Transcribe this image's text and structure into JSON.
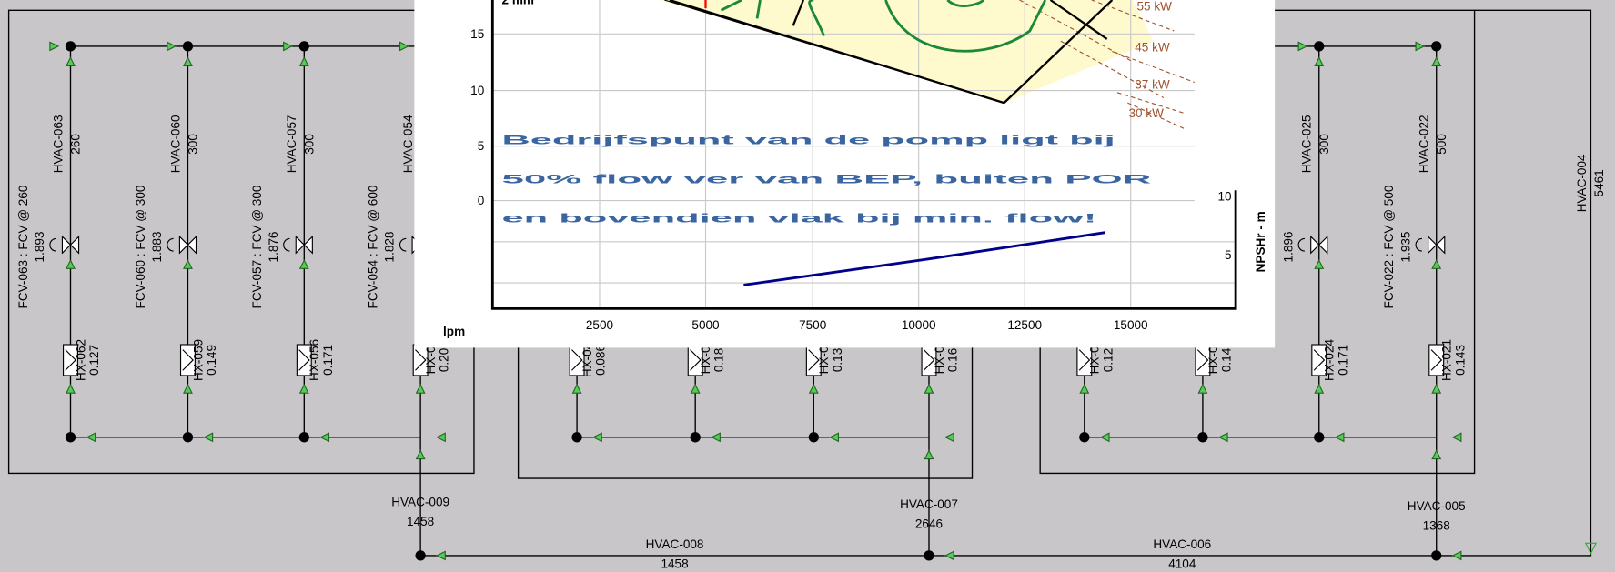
{
  "overlay": {
    "y_ticks": [
      "15",
      "10",
      "5",
      "0"
    ],
    "x_unit": "lpm",
    "x_ticks": [
      "2500",
      "5000",
      "7500",
      "10000",
      "12500",
      "15000"
    ],
    "power_labels": [
      "55 kW",
      "45 kW",
      "37 kW",
      "30 kW"
    ],
    "npsh_label": "NPSHr - m",
    "npsh_ticks": [
      "10",
      "5"
    ],
    "message": [
      "Bedrijfspunt van de pomp ligt bij",
      "50% flow ver van BEP, buiten POR",
      "en bovendien vlak bij min. flow!"
    ]
  },
  "valves": [
    {
      "name": "FCV-063 : FCV @ 260",
      "value": "1.893"
    },
    {
      "name": "FCV-060 : FCV @ 300",
      "value": "1.883"
    },
    {
      "name": "FCV-057 : FCV @ 300",
      "value": "1.876"
    },
    {
      "name": "FCV-054 : FCV @ 600",
      "value": "1.828"
    },
    {
      "value": "1.896"
    },
    {
      "name": "FCV-022 : FCV @ 500",
      "value": "1.935"
    }
  ],
  "pipes": [
    {
      "name": "HVAC-063",
      "value": "260"
    },
    {
      "name": "HVAC-060",
      "value": "300"
    },
    {
      "name": "HVAC-057",
      "value": "300"
    },
    {
      "name": "HVAC-054"
    },
    {
      "name": "HVAC-025",
      "value": "300"
    },
    {
      "name": "HVAC-022",
      "value": "500"
    },
    {
      "name": "HVAC-004",
      "value": "5461"
    }
  ],
  "exchangers": [
    {
      "name": "HX-062",
      "value": "0.127"
    },
    {
      "name": "HX-059",
      "value": "0.149"
    },
    {
      "name": "HX-056",
      "value": "0.171"
    },
    {
      "name": "HX-0",
      "value": "0.20"
    },
    {
      "name": "HX-04",
      "value": "0.086"
    },
    {
      "name": "HX-0",
      "value": "0.18"
    },
    {
      "name": "HX-0",
      "value": "0.13"
    },
    {
      "name": "HX-0",
      "value": "0.16"
    },
    {
      "name": "HX-0",
      "value": "0.12"
    },
    {
      "name": "HX-0",
      "value": "0.14"
    },
    {
      "name": "HX-024",
      "value": "0.171"
    },
    {
      "name": "HX-021",
      "value": "0.143"
    }
  ],
  "headers": [
    {
      "name": "HVAC-009",
      "value": "1458"
    },
    {
      "name": "HVAC-008",
      "value": "1458"
    },
    {
      "name": "HVAC-007",
      "value": "2646"
    },
    {
      "name": "HVAC-006",
      "value": "4104"
    },
    {
      "name": "HVAC-005",
      "value": "1368"
    }
  ]
}
